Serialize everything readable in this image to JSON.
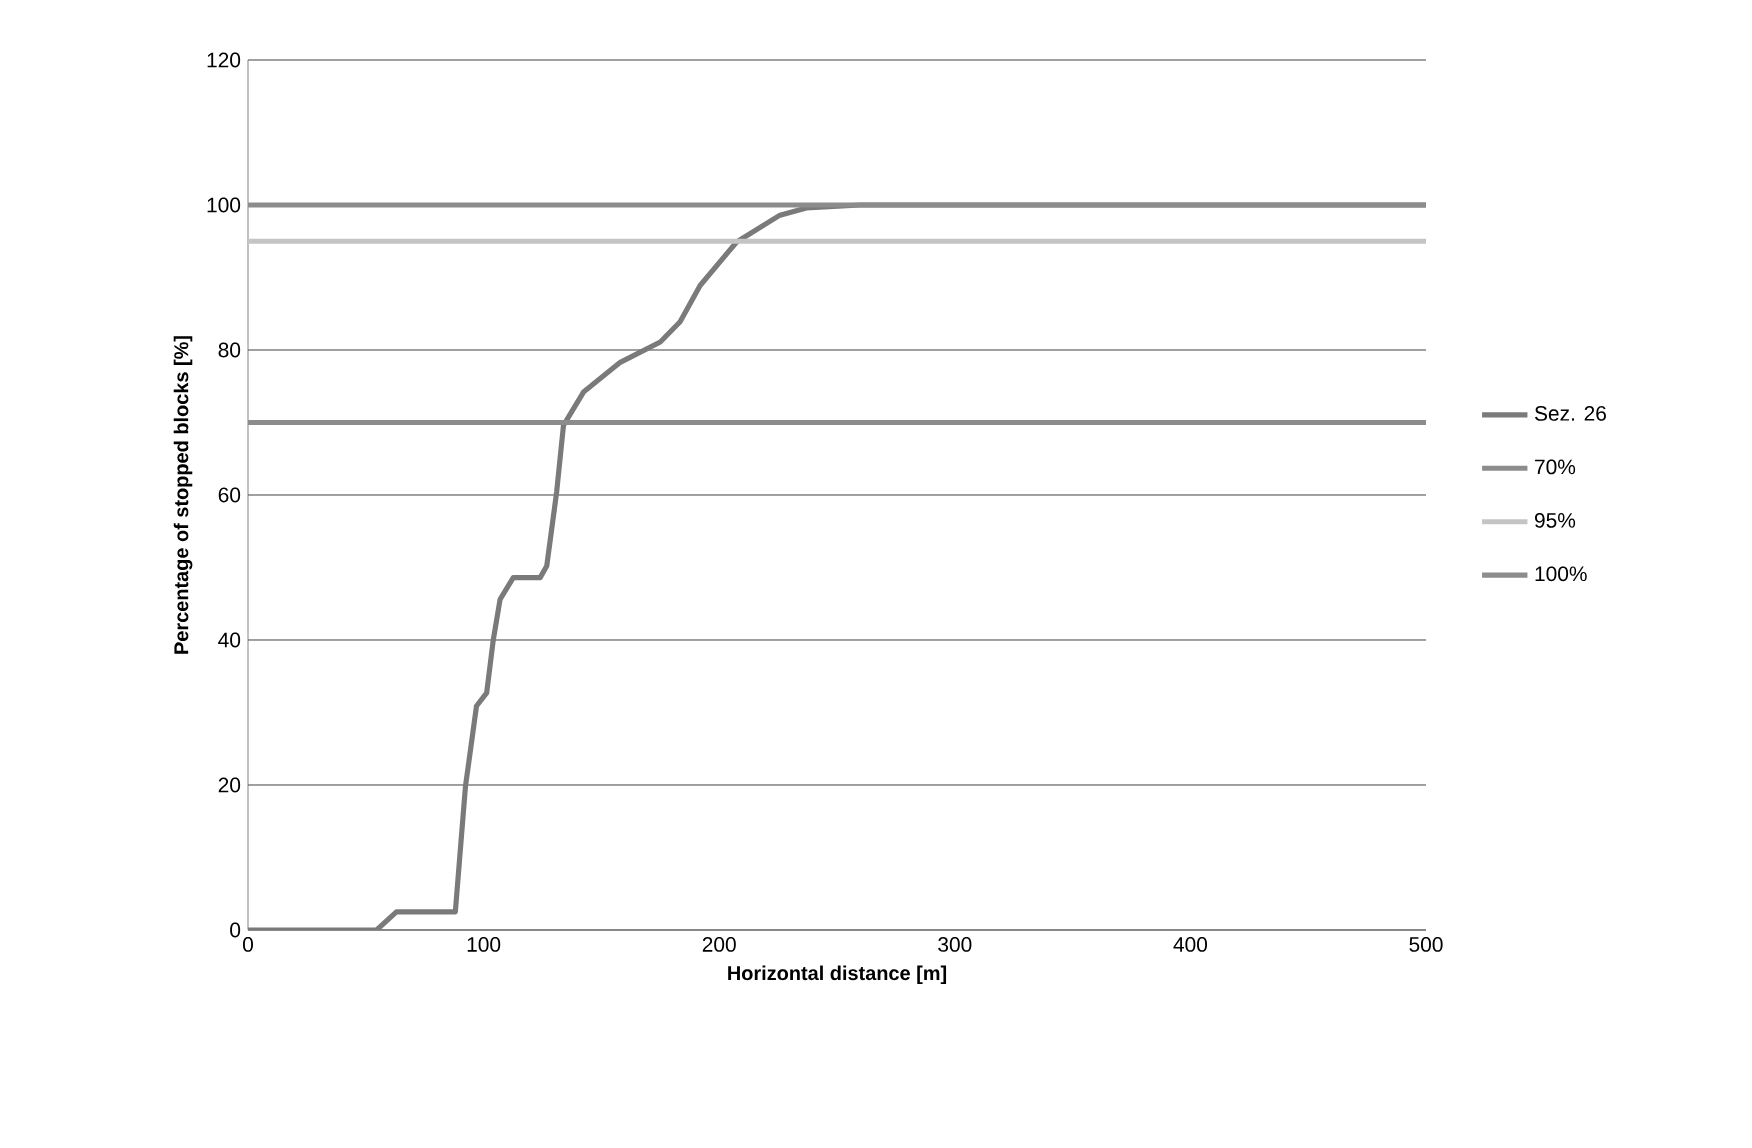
{
  "chart_data": {
    "type": "line",
    "xlabel": "Horizontal distance [m]",
    "ylabel": "Percentage of stopped blocks [%]",
    "xlim": [
      0,
      500
    ],
    "ylim": [
      0,
      120
    ],
    "xticks": [
      0,
      100,
      200,
      300,
      400,
      500
    ],
    "yticks": [
      0,
      20,
      40,
      60,
      80,
      100,
      120
    ],
    "grid": "y",
    "legend": "right",
    "marker": "none",
    "line_style": "solid",
    "series": [
      {
        "name": "Sez. 26",
        "color": "#7a7a7a",
        "x": [
          0,
          54.6,
          63,
          84.3,
          88,
          92.3,
          97,
          101.3,
          104.1,
          107,
          112.6,
          124,
          126.8,
          131,
          133.9,
          142.4,
          158,
          175,
          183.4,
          191.9,
          207.4,
          225.8,
          237,
          260,
          500
        ],
        "values": [
          0,
          0,
          2.5,
          2.5,
          2.5,
          19.8,
          30.9,
          32.7,
          40,
          45.6,
          48.6,
          48.6,
          50.2,
          60.4,
          69.6,
          74.2,
          78.3,
          81.1,
          83.9,
          88.9,
          94.9,
          98.6,
          99.6,
          100,
          100
        ]
      },
      {
        "name": "70%",
        "color": "#8c8c8c",
        "x": [
          0,
          500
        ],
        "values": [
          70,
          70
        ]
      },
      {
        "name": "95%",
        "color": "#c4c4c4",
        "x": [
          0,
          500
        ],
        "values": [
          95,
          95
        ]
      },
      {
        "name": "100%",
        "color": "#8c8c8c",
        "x": [
          0,
          500
        ],
        "values": [
          100,
          100
        ]
      }
    ]
  }
}
